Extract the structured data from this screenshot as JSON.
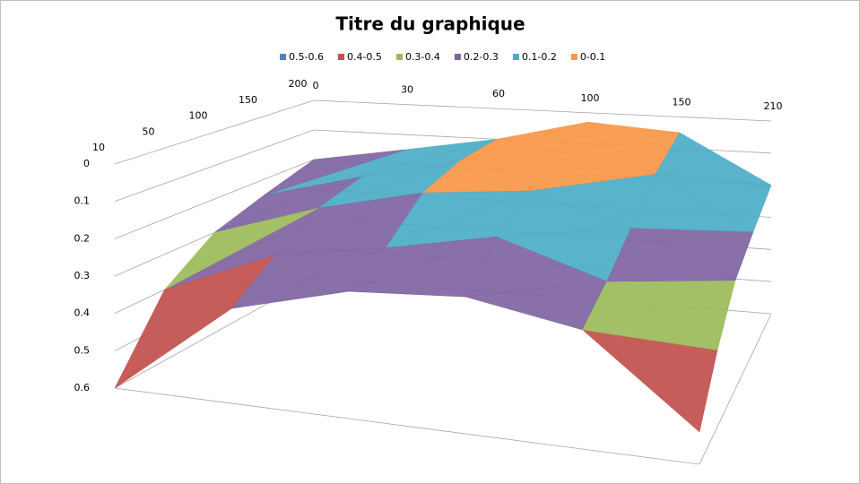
{
  "chart_data": {
    "type": "surface",
    "title": "Titre du graphique",
    "categories": [
      0,
      30,
      60,
      100,
      150,
      210
    ],
    "series_labels": [
      10,
      50,
      100,
      150,
      200
    ],
    "values": [
      [
        0.6,
        0.35,
        0.27,
        0.25,
        0.3,
        0.52
      ],
      [
        0.4,
        0.27,
        0.22,
        0.16,
        0.25,
        0.4
      ],
      [
        0.3,
        0.2,
        0.13,
        0.1,
        0.18,
        0.3
      ],
      [
        0.25,
        0.17,
        0.1,
        0.05,
        0.1,
        0.25
      ],
      [
        0.2,
        0.15,
        0.1,
        0.03,
        0.05,
        0.2
      ]
    ],
    "zlim": [
      0,
      0.6
    ],
    "zticks": [
      0,
      0.1,
      0.2,
      0.3,
      0.4,
      0.5,
      0.6
    ],
    "reversed": true,
    "grid": true,
    "bands": [
      {
        "name": "0.5-0.6",
        "color": "#4f81bd",
        "from": 0.5,
        "to": 0.6
      },
      {
        "name": "0.4-0.5",
        "color": "#c0504d",
        "from": 0.4,
        "to": 0.5
      },
      {
        "name": "0.3-0.4",
        "color": "#9bbb59",
        "from": 0.3,
        "to": 0.4
      },
      {
        "name": "0.2-0.3",
        "color": "#8064a2",
        "from": 0.2,
        "to": 0.3
      },
      {
        "name": "0.1-0.2",
        "color": "#4bacc6",
        "from": 0.1,
        "to": 0.2
      },
      {
        "name": "0-0.1",
        "color": "#f79646",
        "from": 0,
        "to": 0.1
      }
    ]
  }
}
